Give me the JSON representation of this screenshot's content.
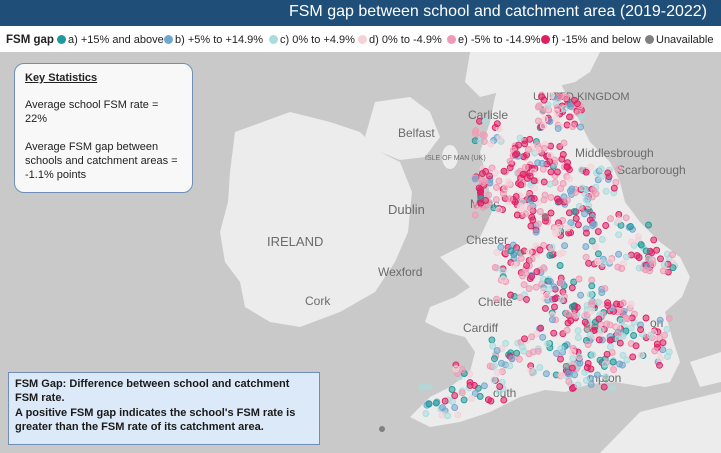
{
  "title": "FSM gap between school and catchment area (2019-2022)",
  "legend": {
    "label": "FSM gap",
    "items": [
      {
        "label": "a) +15% and above",
        "color": "#1f9a9a"
      },
      {
        "label": "b) +5% to +14.9%",
        "color": "#6fa8cf"
      },
      {
        "label": "c) 0% to +4.9%",
        "color": "#a9dcdc"
      },
      {
        "label": "d) 0% to -4.9%",
        "color": "#f5d2d8"
      },
      {
        "label": "e) -5% to -14.9%",
        "color": "#f09ab5"
      },
      {
        "label": "f) -15% and below",
        "color": "#e01e62"
      },
      {
        "label": "Unavailable",
        "color": "#808080"
      }
    ]
  },
  "stats": {
    "heading": "Key Statistics",
    "line1": "Average school FSM rate = 22%",
    "line2": "Average FSM gap between schools and catchment areas = -1.1% points"
  },
  "note": {
    "line1": "FSM Gap: Difference between school and catchment FSM rate.",
    "line2": "A positive FSM gap indicates the school's FSM rate is greater than the FSM rate of its catchment area."
  },
  "map_labels": {
    "united_kingdom": "UNITED KINGDOM",
    "carlisle": "Carlisle",
    "belfast": "Belfast",
    "isle_of_man": "ISLE OF MAN (UK)",
    "middlesbrough": "Middlesbrough",
    "scarborough": "Scarborough",
    "dublin": "Dublin",
    "ireland": "IRELAND",
    "manchester": "Manc",
    "chester": "Chester",
    "wexford": "Wexford",
    "cork": "Cork",
    "cheltenham": "Chelte",
    "cardiff": "Cardiff",
    "plymouth": "outh",
    "southampton": "mpton",
    "london": "on"
  }
}
